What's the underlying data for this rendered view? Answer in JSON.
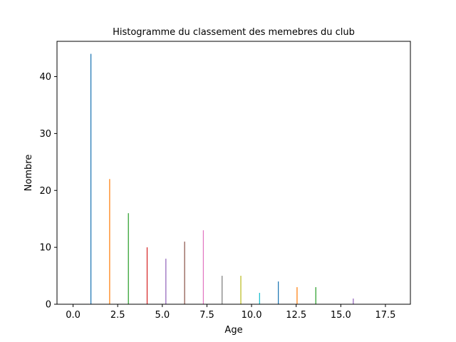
{
  "chart_data": {
    "type": "bar",
    "title": "Histogramme du classement des memebres du club",
    "xlabel": "Age",
    "ylabel": "Nombre",
    "xlim": [
      -0.9,
      18.9
    ],
    "ylim": [
      0,
      46.2
    ],
    "xticks": [
      0.0,
      2.5,
      5.0,
      7.5,
      10.0,
      12.5,
      15.0,
      17.5
    ],
    "xtick_labels": [
      "0.0",
      "2.5",
      "5.0",
      "7.5",
      "10.0",
      "12.5",
      "15.0",
      "17.5"
    ],
    "yticks": [
      0,
      10,
      20,
      30,
      40
    ],
    "ytick_labels": [
      "0",
      "10",
      "20",
      "30",
      "40"
    ],
    "grid": false,
    "bar_width": 0.05,
    "bars": [
      {
        "x": 1.0,
        "value": 44,
        "color": "#1f77b4"
      },
      {
        "x": 2.05,
        "value": 22,
        "color": "#ff7f0e"
      },
      {
        "x": 3.1,
        "value": 16,
        "color": "#2ca02c"
      },
      {
        "x": 4.15,
        "value": 10,
        "color": "#d62728"
      },
      {
        "x": 5.2,
        "value": 8,
        "color": "#9467bd"
      },
      {
        "x": 6.25,
        "value": 11,
        "color": "#8c564b"
      },
      {
        "x": 7.3,
        "value": 13,
        "color": "#e377c2"
      },
      {
        "x": 8.35,
        "value": 5,
        "color": "#7f7f7f"
      },
      {
        "x": 9.4,
        "value": 5,
        "color": "#bcbd22"
      },
      {
        "x": 10.45,
        "value": 2,
        "color": "#17becf"
      },
      {
        "x": 11.5,
        "value": 4,
        "color": "#1f77b4"
      },
      {
        "x": 12.55,
        "value": 3,
        "color": "#ff7f0e"
      },
      {
        "x": 13.6,
        "value": 3,
        "color": "#2ca02c"
      },
      {
        "x": 15.7,
        "value": 1,
        "color": "#9467bd"
      }
    ]
  }
}
